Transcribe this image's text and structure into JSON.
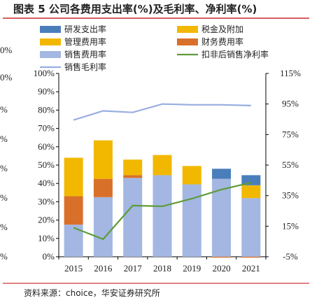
{
  "figure": {
    "title": "图表 5 公司各费用支出率(%)及毛利率、净利率(%)",
    "source": "资料来源：choice，华安证券研究所",
    "cut_left_labels": [
      "0%",
      "0%",
      "%",
      "%",
      "%",
      "%",
      "%",
      "%"
    ]
  },
  "chart_data": {
    "type": "bar",
    "stacked": true,
    "categories": [
      "2015",
      "2016",
      "2017",
      "2018",
      "2019",
      "2020",
      "2021"
    ],
    "ylim_left": [
      0,
      100
    ],
    "yticks_left": [
      "0%",
      "10%",
      "20%",
      "30%",
      "40%",
      "50%",
      "60%",
      "70%",
      "80%",
      "90%",
      "100%"
    ],
    "ylim_right": [
      -5,
      115
    ],
    "yticks_right": [
      "-5%",
      "15%",
      "35%",
      "55%",
      "75%",
      "95%",
      "115%"
    ],
    "legend_position": "top",
    "series": [
      {
        "name": "研发支出率",
        "type": "bar",
        "axis": "left",
        "color": "#4a7ebb",
        "values": [
          0,
          0,
          0,
          0,
          0,
          5.5,
          5.5
        ]
      },
      {
        "name": "税金及附加",
        "type": "bar",
        "axis": "left",
        "color": "#f2b800",
        "values": [
          21,
          21,
          8.5,
          11,
          10,
          0,
          7
        ]
      },
      {
        "name": "管理费用率",
        "type": "bar",
        "axis": "left",
        "color": "#f2b800",
        "values": [
          0,
          0,
          0,
          0,
          0,
          0,
          0
        ]
      },
      {
        "name": "财务费用率",
        "type": "bar",
        "axis": "left",
        "color": "#d9702a",
        "values": [
          15.5,
          10,
          1.5,
          0,
          0,
          -0.5,
          -0.5
        ]
      },
      {
        "name": "销售费用率",
        "type": "bar",
        "axis": "left",
        "color": "#a3b7e2",
        "values": [
          17.5,
          32.5,
          43,
          44.5,
          39.5,
          42.5,
          32
        ]
      },
      {
        "name": "扣非后销售净利率",
        "type": "line",
        "axis": "right",
        "color": "#5f9b3a",
        "values": [
          14,
          6.5,
          28.5,
          28,
          33,
          39,
          43.5
        ]
      },
      {
        "name": "销售毛利率",
        "type": "line",
        "axis": "right",
        "color": "#99aee0",
        "values": [
          84.5,
          90.5,
          89.5,
          95,
          94.5,
          94.5,
          94
        ]
      }
    ]
  }
}
